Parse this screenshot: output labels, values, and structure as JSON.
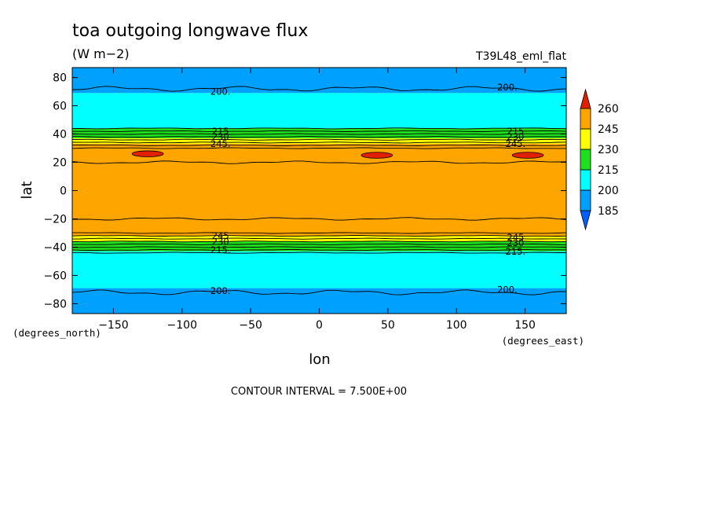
{
  "chart_data": {
    "type": "heatmap",
    "subtype": "filled-contour",
    "title": "toa outgoing longwave flux",
    "units": "(W m−2)",
    "dataset": "T39L48_eml_flat",
    "xlabel": "lon",
    "ylabel": "lat",
    "x_units": "(degrees_east)",
    "y_units": "(degrees_north)",
    "xlim": [
      -180,
      180
    ],
    "ylim": [
      -87,
      87
    ],
    "xticks": [
      -150,
      -100,
      -50,
      0,
      50,
      100,
      150
    ],
    "yticks": [
      -80,
      -60,
      -40,
      -20,
      0,
      20,
      40,
      60,
      80
    ],
    "contour_interval_text": "CONTOUR INTERVAL = 7.500E+00",
    "colorbar": {
      "levels": [
        185,
        200,
        215,
        230,
        245,
        260
      ],
      "colors": [
        "#00a0ff",
        "#00ffff",
        "#1ee01e",
        "#ffff00",
        "#ffa500",
        "#e02000"
      ]
    },
    "bands": [
      {
        "lat_from": 69,
        "lat_to": 87,
        "color": "#00a0ff"
      },
      {
        "lat_from": 44,
        "lat_to": 69,
        "color": "#00ffff"
      },
      {
        "lat_from": 37,
        "lat_to": 44,
        "color": "#1ee01e"
      },
      {
        "lat_from": 33,
        "lat_to": 37,
        "color": "#ffff00"
      },
      {
        "lat_from": -32,
        "lat_to": 33,
        "color": "#ffa500"
      },
      {
        "lat_from": -36,
        "lat_to": -32,
        "color": "#ffff00"
      },
      {
        "lat_from": -43,
        "lat_to": -36,
        "color": "#1ee01e"
      },
      {
        "lat_from": -69,
        "lat_to": -43,
        "color": "#00ffff"
      },
      {
        "lat_from": -87,
        "lat_to": -69,
        "color": "#00a0ff"
      }
    ],
    "contour_lines_lat": [
      72,
      44,
      42,
      40,
      38,
      36,
      34,
      32,
      30,
      20,
      -20,
      -30,
      -32,
      -34,
      -36,
      -38,
      -40,
      -42,
      -44,
      -72
    ],
    "maxima_regions": [
      {
        "lon": -125,
        "lat": 26,
        "value": 260
      },
      {
        "lon": 42,
        "lat": 25,
        "value": 260
      },
      {
        "lon": 152,
        "lat": 25,
        "value": 260
      }
    ],
    "contour_labels": [
      {
        "text": "200.",
        "lon": -72,
        "lat": 70
      },
      {
        "text": "200.",
        "lon": 137,
        "lat": 73
      },
      {
        "text": "215",
        "lon": -72,
        "lat": 42
      },
      {
        "text": "230",
        "lon": -72,
        "lat": 38
      },
      {
        "text": "245.",
        "lon": -72,
        "lat": 33
      },
      {
        "text": "215",
        "lon": 143,
        "lat": 42
      },
      {
        "text": "230",
        "lon": 143,
        "lat": 38
      },
      {
        "text": "245.",
        "lon": 143,
        "lat": 33
      },
      {
        "text": "245",
        "lon": -72,
        "lat": -32
      },
      {
        "text": "230",
        "lon": -72,
        "lat": -36
      },
      {
        "text": "215.",
        "lon": -72,
        "lat": -42
      },
      {
        "text": "245",
        "lon": 143,
        "lat": -33
      },
      {
        "text": "230",
        "lon": 143,
        "lat": -37
      },
      {
        "text": "215.",
        "lon": 143,
        "lat": -43
      },
      {
        "text": "200.",
        "lon": -72,
        "lat": -71
      },
      {
        "text": "200.",
        "lon": 137,
        "lat": -70
      }
    ]
  }
}
